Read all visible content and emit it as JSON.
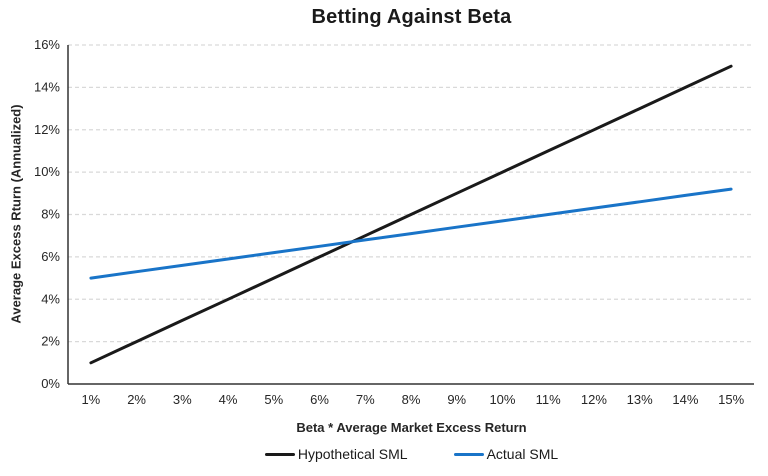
{
  "chart_data": {
    "type": "line",
    "title": "Betting Against Beta",
    "xlabel": "Beta * Average Market Excess Return",
    "ylabel": "Average Excess Rturn (Annualized)",
    "categories": [
      "1%",
      "2%",
      "3%",
      "4%",
      "5%",
      "6%",
      "7%",
      "8%",
      "9%",
      "10%",
      "11%",
      "12%",
      "13%",
      "14%",
      "15%"
    ],
    "yticks": [
      "0%",
      "2%",
      "4%",
      "6%",
      "8%",
      "10%",
      "12%",
      "14%",
      "16%"
    ],
    "ylim": [
      0,
      16
    ],
    "grid": "horizontal-dashed",
    "legend_position": "bottom",
    "series": [
      {
        "name": "Hypothetical SML",
        "color": "#1a1a1a",
        "values": [
          1,
          2,
          3,
          4,
          5,
          6,
          7,
          8,
          9,
          10,
          11,
          12,
          13,
          14,
          15
        ]
      },
      {
        "name": "Actual SML",
        "color": "#1974c8",
        "values": [
          5.0,
          5.3,
          5.6,
          5.9,
          6.2,
          6.5,
          6.8,
          7.1,
          7.4,
          7.7,
          8.0,
          8.3,
          8.6,
          8.9,
          9.2
        ]
      }
    ],
    "colors": {
      "grid": "#d9d9d9",
      "axis": "#333333",
      "text": "#262626",
      "background": "#ffffff"
    }
  }
}
